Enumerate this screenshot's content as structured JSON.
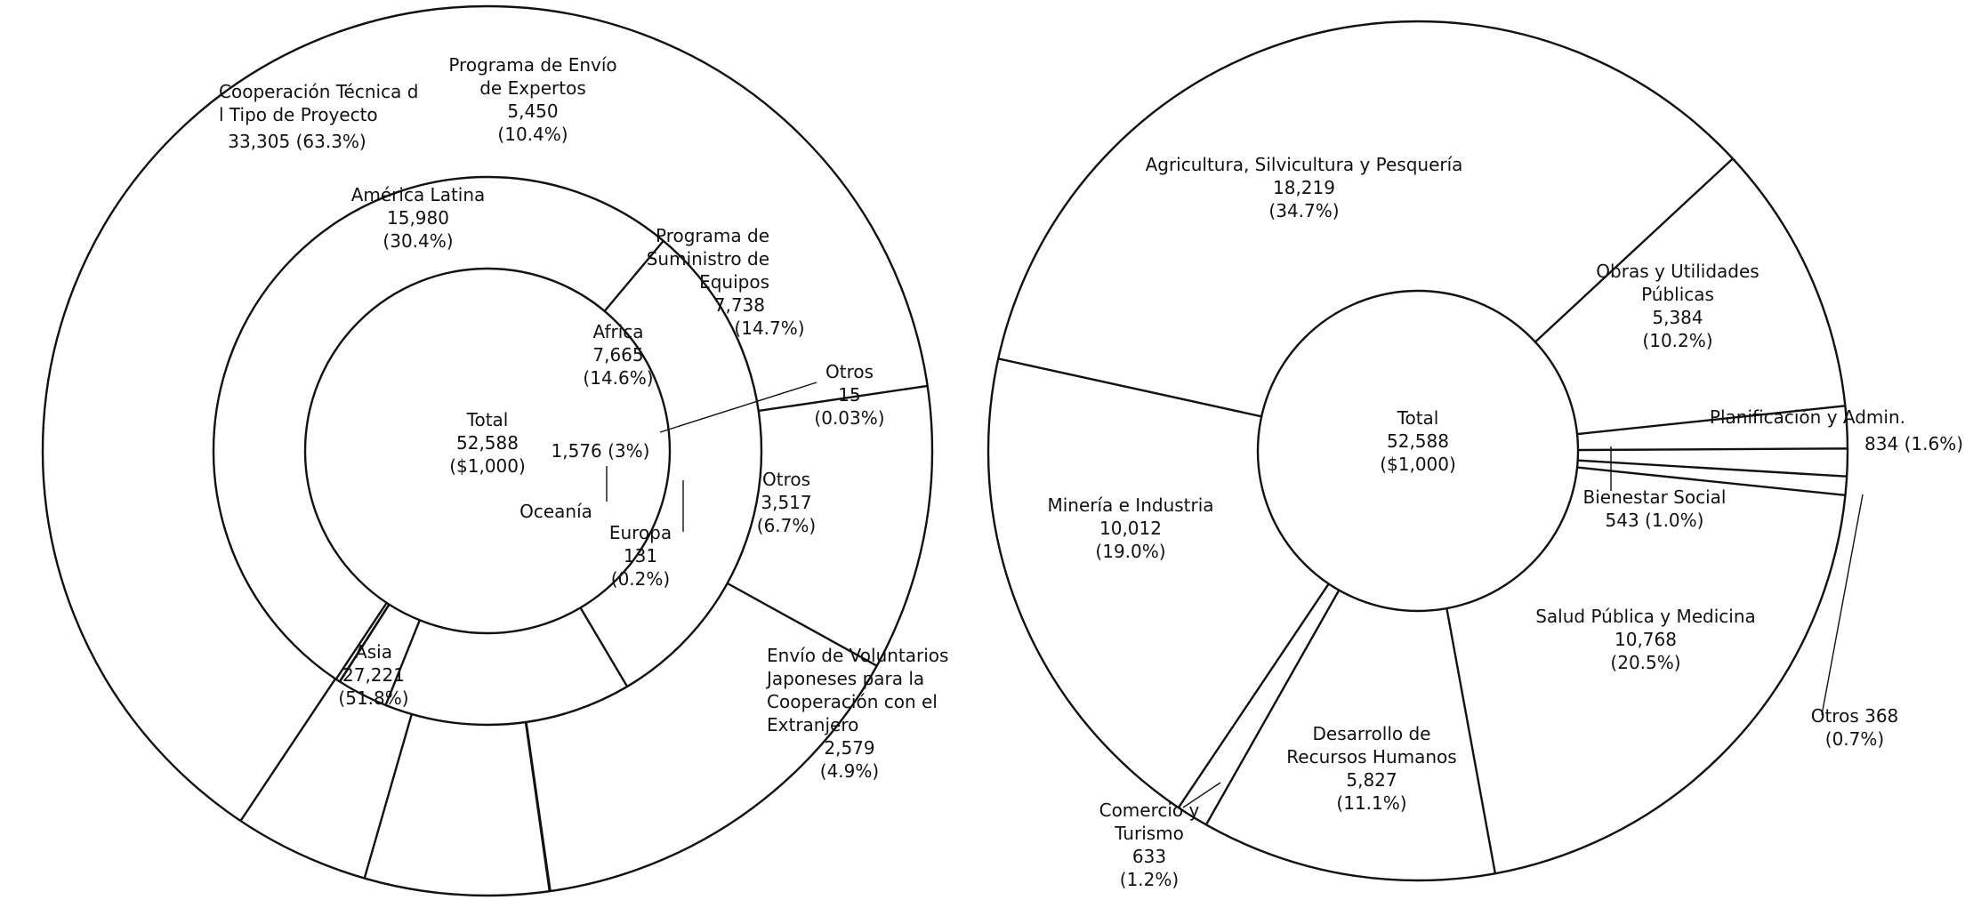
{
  "chart_data": [
    {
      "type": "pie",
      "total": {
        "label": "Total",
        "value": "52,588",
        "unit": "($1,000)"
      },
      "series": [
        {
          "name": "",
          "values": [
            {
              "label": "Asia",
              "value": 27221,
              "display": "27,221",
              "percent": "(51.8%)"
            },
            {
              "label": "América Latina",
              "value": 15980,
              "display": "15,980",
              "percent": "(30.4%)"
            },
            {
              "label": "Africa",
              "value": 7665,
              "display": "7,665",
              "percent": "(14.6%)"
            },
            {
              "label": "",
              "value": 1576,
              "display": "1,576 (3%)",
              "percent": ""
            },
            {
              "label": "Oceanía",
              "value": null,
              "display": "",
              "percent": ""
            },
            {
              "label": "Europa",
              "value": 131,
              "display": "131",
              "percent": "(0.2%)"
            }
          ]
        },
        {
          "name": "",
          "values": [
            {
              "label": "Cooperación Técnica del Tipo de Proyecto",
              "value": 33305,
              "display": "33,305",
              "percent": "(63.3%)"
            },
            {
              "label": "Programa de Envío de Expertos",
              "value": 5450,
              "display": "5,450",
              "percent": "(10.4%)"
            },
            {
              "label": "Programa de Suministro de Equipos",
              "value": 7738,
              "display": "7,738",
              "percent": "(14.7%)"
            },
            {
              "label": "Otros",
              "value": 15,
              "display": "15",
              "percent": "(0.03%)"
            },
            {
              "label": "Otros",
              "value": 3517,
              "display": "3,517",
              "percent": "(6.7%)"
            },
            {
              "label": "Envío de Voluntarios Japoneses para la Cooperación con el Extranjero",
              "value": 2579,
              "display": "2,579",
              "percent": "(4.9%)"
            }
          ]
        }
      ]
    },
    {
      "type": "pie",
      "total": {
        "label": "Total",
        "value": "52,588",
        "unit": "($1,000)"
      },
      "series": [
        {
          "name": "",
          "values": [
            {
              "label": "Agricultura, Silvicultura y Pesquería",
              "value": 18219,
              "display": "18,219",
              "percent": "(34.7%)"
            },
            {
              "label": "Obras y Utilidades Públicas",
              "value": 5384,
              "display": "5,384",
              "percent": "(10.2%)"
            },
            {
              "label": "Planificación y Admin.",
              "value": 834,
              "display": "834",
              "percent": "(1.6%)"
            },
            {
              "label": "Bienestar Social",
              "value": 543,
              "display": "543",
              "percent": "(1.0%)"
            },
            {
              "label": "Otros",
              "value": 368,
              "display": "368",
              "percent": "(0.7%)"
            },
            {
              "label": "Salud Pública y Medicina",
              "value": 10768,
              "display": "10,768",
              "percent": "(20.5%)"
            },
            {
              "label": "Desarrollo de Recursos Humanos",
              "value": 5827,
              "display": "5,827",
              "percent": "(11.1%)"
            },
            {
              "label": "Comercio y Turismo",
              "value": 633,
              "display": "633",
              "percent": "(1.2%)"
            },
            {
              "label": "Minería e Industria",
              "value": 10012,
              "display": "10,012",
              "percent": "(19.0%)"
            }
          ]
        }
      ]
    }
  ]
}
